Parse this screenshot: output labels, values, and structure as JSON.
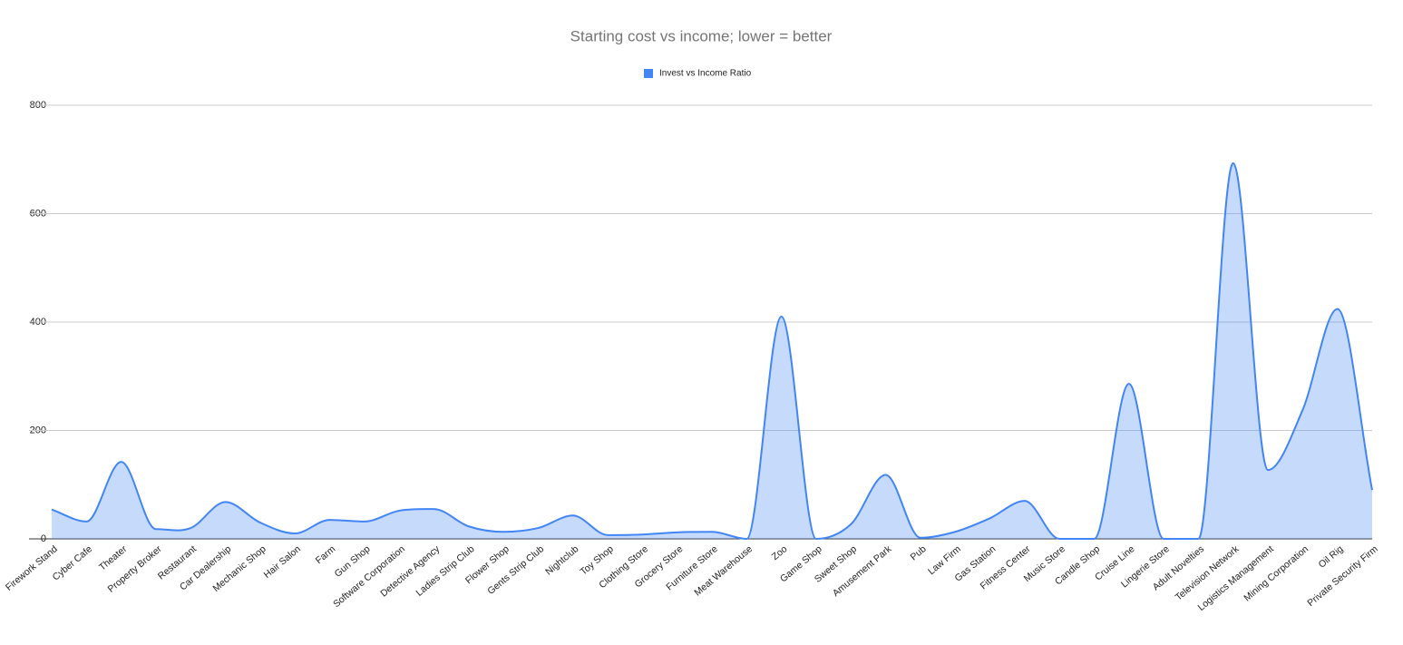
{
  "chart_data": {
    "type": "area",
    "title": "Starting cost vs income; lower = better",
    "categories": [
      "Firework Stand",
      "Cyber Cafe",
      "Theater",
      "Property Broker",
      "Restaurant",
      "Car Dealership",
      "Mechanic Shop",
      "Hair Salon",
      "Farm",
      "Gun Shop",
      "Software Corporation",
      "Detective Agency",
      "Ladies Strip Club",
      "Flower Shop",
      "Gents Strip Club",
      "Nightclub",
      "Toy Shop",
      "Clothing Store",
      "Grocery Store",
      "Furniture Store",
      "Meat Warehouse",
      "Zoo",
      "Game Shop",
      "Sweet Shop",
      "Amusement Park",
      "Pub",
      "Law Firm",
      "Gas Station",
      "Fitness Center",
      "Music Store",
      "Candle Shop",
      "Cruise Line",
      "Lingerie Store",
      "Adult Novelties",
      "Television Network",
      "Logistics Management",
      "Mining Corporation",
      "Oil Rig",
      "Private Security Firm"
    ],
    "series": [
      {
        "name": "Invest vs Income Ratio",
        "color": "#4285f4",
        "values": [
          54,
          32,
          142,
          18,
          20,
          68,
          30,
          10,
          35,
          32,
          52,
          55,
          23,
          13,
          20,
          43,
          7,
          8,
          12,
          13,
          0,
          410,
          0,
          27,
          118,
          2,
          13,
          38,
          70,
          0,
          0,
          286,
          0,
          0,
          693,
          127,
          238,
          424,
          90
        ]
      }
    ],
    "ylim": [
      0,
      800
    ],
    "yticks": [
      0,
      200,
      400,
      600,
      800
    ],
    "grid": true,
    "legend": "top"
  }
}
